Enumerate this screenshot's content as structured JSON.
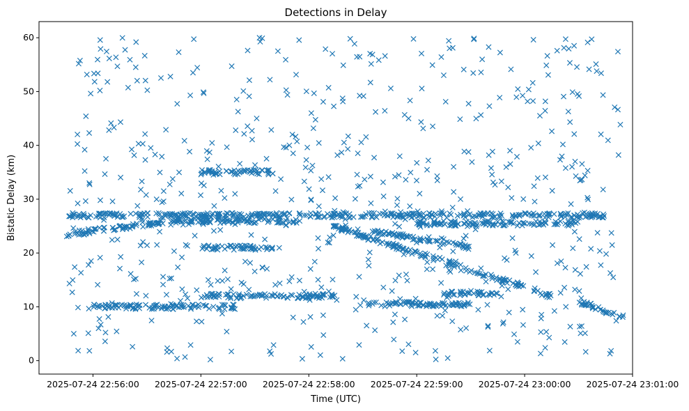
{
  "chart_data": {
    "type": "scatter",
    "title": "Detections in Delay",
    "xlabel": "Time (UTC)",
    "ylabel": "Bistatic Delay (km)",
    "marker": "x",
    "color": "#1f77b4",
    "x_axis_type": "datetime",
    "xlim": [
      "2025-07-24 22:55:30",
      "2025-07-24 23:01:00"
    ],
    "ylim": [
      -2.5,
      63
    ],
    "x_ticks": [
      "2025-07-24 22:56:00",
      "2025-07-24 22:57:00",
      "2025-07-24 22:58:00",
      "2025-07-24 22:59:00",
      "2025-07-24 23:00:00",
      "2025-07-24 23:01:00"
    ],
    "y_ticks": [
      0,
      10,
      20,
      30,
      40,
      50,
      60
    ],
    "grid": false,
    "series": [
      {
        "clusters": [
          {
            "description": "horizontal track",
            "x_start": "2025-07-24 22:55:45",
            "x_end": "2025-07-24 23:00:45",
            "y_start": 27.0,
            "y_end": 27.0
          },
          {
            "description": "rising track",
            "x_start": "2025-07-24 22:55:45",
            "x_end": "2025-07-24 22:56:45",
            "y_start": 23.5,
            "y_end": 26.0
          },
          {
            "description": "horizontal track",
            "x_start": "2025-07-24 22:56:45",
            "x_end": "2025-07-24 22:57:55",
            "y_start": 26.0,
            "y_end": 26.0
          },
          {
            "description": "descending track",
            "x_start": "2025-07-24 22:58:13",
            "x_end": "2025-07-24 23:00:15",
            "y_start": 25.0,
            "y_end": 12.0
          },
          {
            "description": "descending track",
            "x_start": "2025-07-24 22:58:35",
            "x_end": "2025-07-24 22:59:30",
            "y_start": 24.0,
            "y_end": 21.0
          },
          {
            "description": "horizontal track",
            "x_start": "2025-07-24 22:59:00",
            "x_end": "2025-07-24 23:00:30",
            "y_start": 25.5,
            "y_end": 25.5
          },
          {
            "description": "horizontal track",
            "x_start": "2025-07-24 22:57:00",
            "x_end": "2025-07-24 22:58:15",
            "y_start": 12.0,
            "y_end": 12.0
          },
          {
            "description": "horizontal track",
            "x_start": "2025-07-24 22:56:00",
            "x_end": "2025-07-24 22:57:20",
            "y_start": 10.0,
            "y_end": 10.0
          },
          {
            "description": "horizontal track",
            "x_start": "2025-07-24 22:57:00",
            "x_end": "2025-07-24 22:57:40",
            "y_start": 21.0,
            "y_end": 21.0
          },
          {
            "description": "horizontal track",
            "x_start": "2025-07-24 22:57:00",
            "x_end": "2025-07-24 22:57:40",
            "y_start": 35.0,
            "y_end": 35.0
          },
          {
            "description": "descending track",
            "x_start": "2025-07-24 23:00:30",
            "x_end": "2025-07-24 23:00:55",
            "y_start": 11.0,
            "y_end": 8.0
          },
          {
            "description": "horizontal track",
            "x_start": "2025-07-24 22:59:15",
            "x_end": "2025-07-24 22:59:45",
            "y_start": 12.5,
            "y_end": 12.5
          },
          {
            "description": "horizontal track",
            "x_start": "2025-07-24 22:58:30",
            "x_end": "2025-07-24 22:59:30",
            "y_start": 10.5,
            "y_end": 10.5
          }
        ],
        "scattered_points": {
          "x_start": "2025-07-24 22:55:45",
          "x_end": "2025-07-24 23:00:55",
          "y_min": 0,
          "y_max": 60
        }
      }
    ]
  }
}
